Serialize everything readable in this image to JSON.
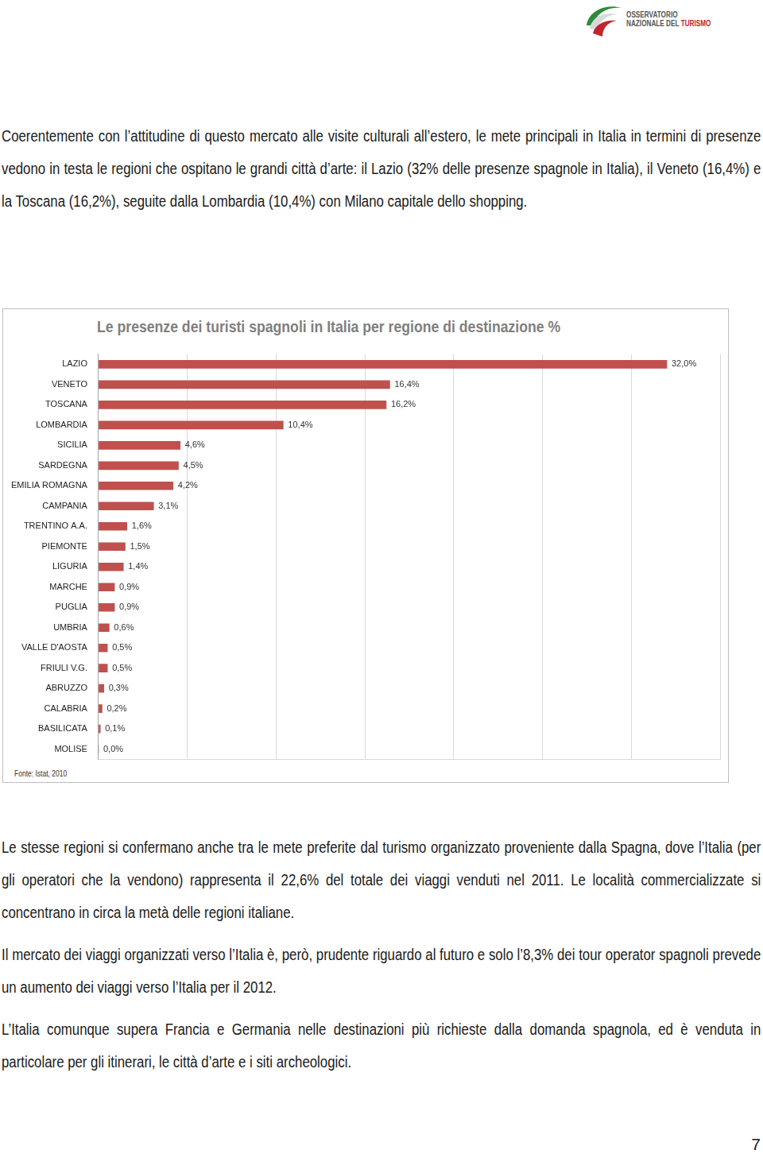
{
  "header": {
    "logo_line1": "OSSERVATORIO",
    "logo_line2": "NAZIONALE DEL",
    "logo_highlight": "TURISMO"
  },
  "paragraphs_before": [
    "Coerentemente con l’attitudine di questo mercato alle visite culturali all’estero, le mete principali in Italia in termini di presenze vedono in testa le regioni che ospitano le grandi città d’arte: il Lazio (32% delle presenze spagnole in Italia), il Veneto (16,4%) e la Toscana (16,2%), seguite dalla Lombardia (10,4%) con Milano capitale dello shopping."
  ],
  "chart_data": {
    "type": "bar",
    "orientation": "horizontal",
    "title": "Le presenze dei turisti spagnoli in Italia per regione di destinazione %",
    "source": "Fonte: Istat, 2010",
    "categories": [
      "LAZIO",
      "VENETO",
      "TOSCANA",
      "LOMBARDIA",
      "SICILIA",
      "SARDEGNA",
      "EMILIA ROMAGNA",
      "CAMPANIA",
      "TRENTINO A.A.",
      "PIEMONTE",
      "LIGURIA",
      "MARCHE",
      "PUGLIA",
      "UMBRIA",
      "VALLE D'AOSTA",
      "FRIULI V.G.",
      "ABRUZZO",
      "CALABRIA",
      "BASILICATA",
      "MOLISE"
    ],
    "values": [
      32.0,
      16.4,
      16.2,
      10.4,
      4.6,
      4.5,
      4.2,
      3.1,
      1.6,
      1.5,
      1.4,
      0.9,
      0.9,
      0.6,
      0.5,
      0.5,
      0.3,
      0.2,
      0.1,
      0.0
    ],
    "value_labels": [
      "32,0%",
      "16,4%",
      "16,2%",
      "10,4%",
      "4,6%",
      "4,5%",
      "4,2%",
      "3,1%",
      "1,6%",
      "1,5%",
      "1,4%",
      "0,9%",
      "0,9%",
      "0,6%",
      "0,5%",
      "0,5%",
      "0,3%",
      "0,2%",
      "0,1%",
      "0,0%"
    ],
    "color": "#c0504d",
    "xlim": [
      0,
      35
    ],
    "xticks": [
      0,
      5,
      10,
      15,
      20,
      25,
      30,
      35
    ],
    "grid": true,
    "data_labels": true,
    "tick_labels": "y"
  },
  "paragraphs_after": [
    "Le stesse regioni si confermano anche tra le mete preferite dal turismo organizzato proveniente dalla Spagna, dove l’Italia (per gli operatori che la vendono) rappresenta il 22,6% del totale dei viaggi venduti nel 2011. Le località commercializzate si concentrano in circa la metà delle regioni italiane.",
    "Il mercato dei viaggi organizzati verso l’Italia è, però, prudente riguardo al futuro e solo l’8,3% dei tour operator spagnoli prevede un aumento dei viaggi verso l’Italia per il 2012.",
    "L’Italia comunque supera Francia e Germania nelle destinazioni più richieste dalla domanda spagnola, ed è venduta in particolare per gli itinerari, le città d’arte e i siti archeologici."
  ],
  "page_number": "7"
}
